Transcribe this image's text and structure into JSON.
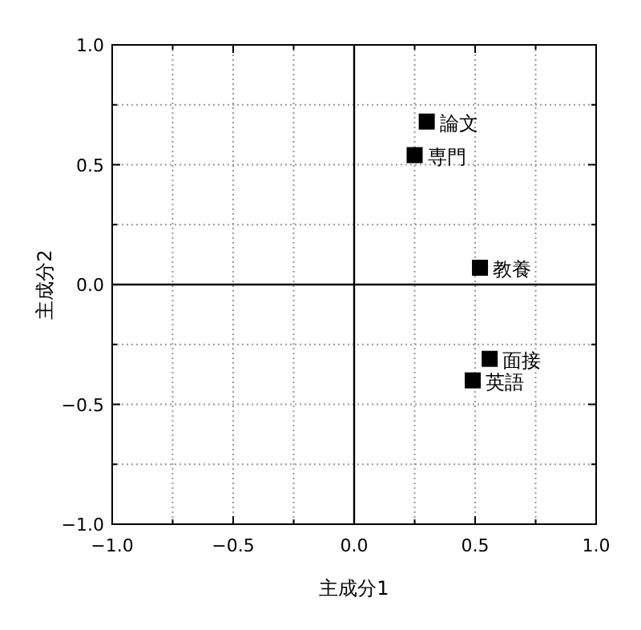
{
  "chart_data": {
    "type": "scatter",
    "xlabel": "主成分1",
    "ylabel": "主成分2",
    "xlim": [
      -1,
      1
    ],
    "ylim": [
      -1,
      1
    ],
    "xticks": [
      {
        "value": -1,
        "label": "−1.0"
      },
      {
        "value": -0.75,
        "label": null
      },
      {
        "value": -0.5,
        "label": "−0.5"
      },
      {
        "value": -0.25,
        "label": null
      },
      {
        "value": 0,
        "label": "0.0"
      },
      {
        "value": 0.25,
        "label": null
      },
      {
        "value": 0.5,
        "label": "0.5"
      },
      {
        "value": 0.75,
        "label": null
      },
      {
        "value": 1,
        "label": "1.0"
      }
    ],
    "yticks": [
      {
        "value": -1,
        "label": "−1.0"
      },
      {
        "value": -0.75,
        "label": null
      },
      {
        "value": -0.5,
        "label": "−0.5"
      },
      {
        "value": -0.25,
        "label": null
      },
      {
        "value": 0,
        "label": "0.0"
      },
      {
        "value": 0.25,
        "label": null
      },
      {
        "value": 0.5,
        "label": "0.5"
      },
      {
        "value": 0.75,
        "label": null
      },
      {
        "value": 1,
        "label": "1.0"
      }
    ],
    "grid": true,
    "marker": "square",
    "series": [
      {
        "name": "論文",
        "color": "#000000",
        "x": [
          0.3
        ],
        "values": [
          0.68
        ]
      },
      {
        "name": "専門",
        "color": "#000000",
        "x": [
          0.25
        ],
        "values": [
          0.54
        ]
      },
      {
        "name": "教養",
        "color": "#000000",
        "x": [
          0.52
        ],
        "values": [
          0.07
        ]
      },
      {
        "name": "面接",
        "color": "#000000",
        "x": [
          0.56
        ],
        "values": [
          -0.31
        ]
      },
      {
        "name": "英語",
        "color": "#000000",
        "x": [
          0.49
        ],
        "values": [
          -0.4
        ]
      }
    ]
  }
}
